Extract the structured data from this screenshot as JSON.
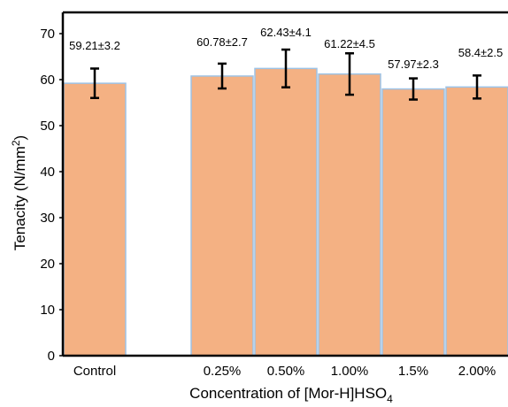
{
  "chart_data": {
    "type": "bar",
    "xlabel": "Concentration of [Mor-H]HSO",
    "xlabel_subscript": "4",
    "ylabel": "Tenacity (N/mm",
    "ylabel_superscript": "2",
    "ylabel_suffix": ")",
    "ylim": [
      0,
      70
    ],
    "yticks": [
      0,
      10,
      20,
      30,
      40,
      50,
      60,
      70
    ],
    "grid": false,
    "legend": "none",
    "bar_color": "#f4b183",
    "bar_edge_color": "#9dc3e6",
    "categories": [
      "Control",
      "",
      "0.25%",
      "0.50%",
      "1.00%",
      "1.5%",
      "2.00%"
    ],
    "values": [
      59.21,
      0,
      60.78,
      62.43,
      61.22,
      57.97,
      58.4
    ],
    "errors": [
      3.2,
      0,
      2.7,
      4.1,
      4.5,
      2.3,
      2.5
    ],
    "data_labels": [
      "59.21±3.2",
      "",
      "60.78±2.7",
      "62.43±4.1",
      "61.22±4.5",
      "57.97±2.3",
      "58.4±2.5"
    ]
  }
}
